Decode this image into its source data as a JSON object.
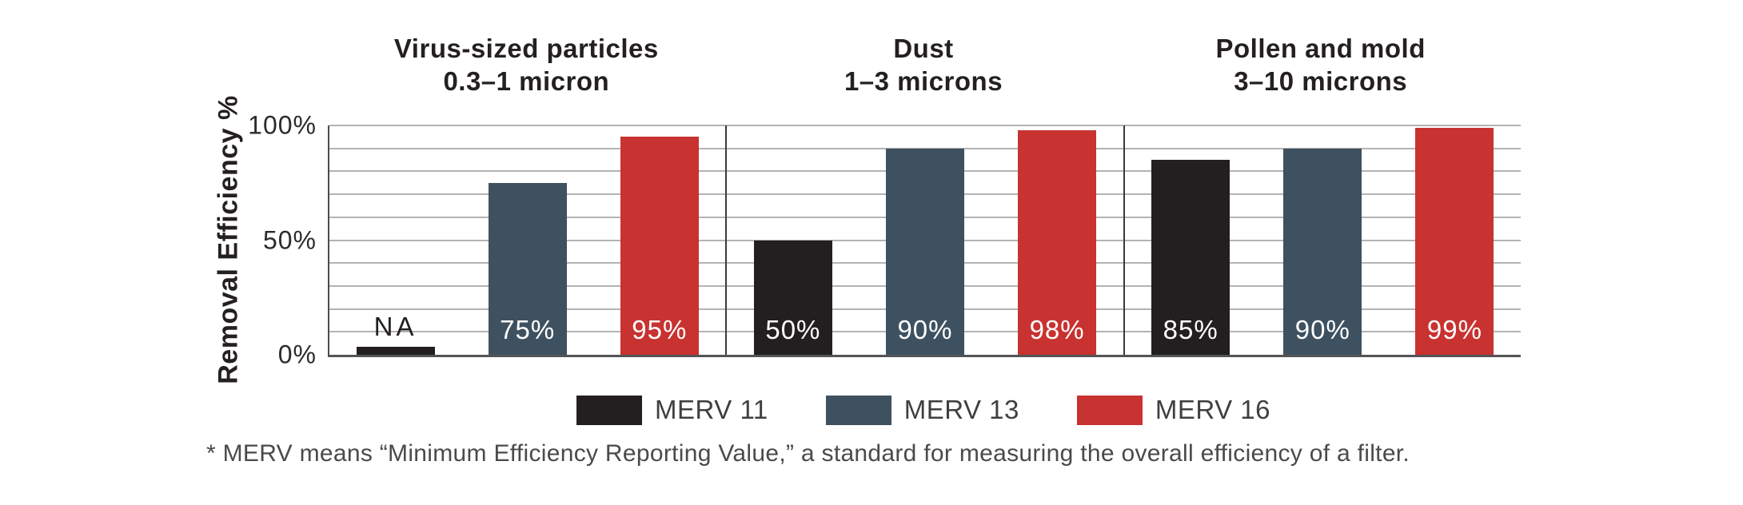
{
  "chart_data": {
    "type": "bar",
    "title": "",
    "ylabel": "Removal Efficiency %",
    "xlabel": "",
    "ylim": [
      0,
      100
    ],
    "grid_on": true,
    "grid_step": 10,
    "legend_position": "bottom",
    "yticks": [
      {
        "value": 0,
        "label": "0%"
      },
      {
        "value": 50,
        "label": "50%"
      },
      {
        "value": 100,
        "label": "100%"
      }
    ],
    "categories": [
      "Virus-sized particles 0.3–1 micron",
      "Dust 1–3 microns",
      "Pollen and mold 3–10 microns"
    ],
    "series": [
      {
        "name": "MERV 11",
        "values": [
          "NA",
          50,
          85
        ]
      },
      {
        "name": "MERV 13",
        "values": [
          75,
          90,
          90
        ]
      },
      {
        "name": "MERV 16",
        "values": [
          95,
          98,
          99
        ]
      }
    ],
    "groups": [
      {
        "title_lines": [
          "Virus-sized particles",
          "0.3–1 micron"
        ],
        "bars": [
          {
            "series": "MERV 11",
            "value": null,
            "label": "NA"
          },
          {
            "series": "MERV 13",
            "value": 75,
            "label": "75%"
          },
          {
            "series": "MERV 16",
            "value": 95,
            "label": "95%"
          }
        ]
      },
      {
        "title_lines": [
          "Dust",
          "1–3 microns"
        ],
        "bars": [
          {
            "series": "MERV 11",
            "value": 50,
            "label": "50%"
          },
          {
            "series": "MERV 13",
            "value": 90,
            "label": "90%"
          },
          {
            "series": "MERV 16",
            "value": 98,
            "label": "98%"
          }
        ]
      },
      {
        "title_lines": [
          "Pollen and mold",
          "3–10 microns"
        ],
        "bars": [
          {
            "series": "MERV 11",
            "value": 85,
            "label": "85%"
          },
          {
            "series": "MERV 13",
            "value": 90,
            "label": "90%"
          },
          {
            "series": "MERV 16",
            "value": 99,
            "label": "99%"
          }
        ]
      }
    ],
    "legend": [
      {
        "label": "MERV 11",
        "color": "#231f20"
      },
      {
        "label": "MERV 13",
        "color": "#3e5160"
      },
      {
        "label": "MERV 16",
        "color": "#c83230"
      }
    ],
    "footnote": "* MERV means “Minimum Efficiency Reporting Value,” a standard for measuring the overall efficiency of a filter."
  }
}
